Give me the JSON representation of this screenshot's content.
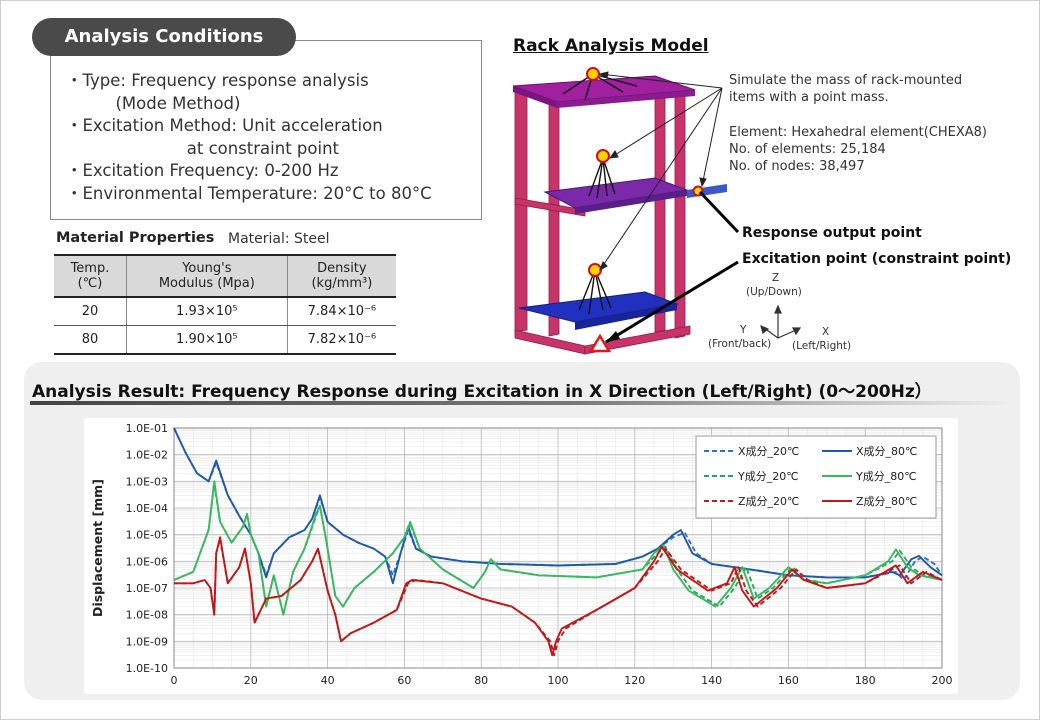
{
  "conditions": {
    "title": "Analysis Conditions",
    "items": [
      "・Type: Frequency response analysis",
      "　　　(Mode Method)",
      "・Excitation Method: Unit acceleration",
      "　　　　　　　 at constraint point",
      "・Excitation Frequency: 0-200 Hz",
      "・Environmental Temperature: 20°C to 80°C"
    ]
  },
  "material": {
    "title": "Material Properties",
    "subtitle": "Material: Steel",
    "headers": [
      [
        "Temp.",
        "(℃)"
      ],
      [
        "Young's",
        "Modulus (Mpa)"
      ],
      [
        "Density",
        "(kg/mm³)"
      ]
    ],
    "rows": [
      [
        "20",
        "1.93×10⁵",
        "7.84×10⁻⁶"
      ],
      [
        "80",
        "1.90×10⁵",
        "7.82×10⁻⁶"
      ]
    ]
  },
  "model": {
    "title": "Rack Analysis Model",
    "mass_note": "Simulate the mass of rack-mounted\nitems with a point mass.",
    "element_note": "Element: Hexahedral element(CHEXA8)\nNo. of elements: 25,184\nNo. of nodes: 38,497",
    "response_label": "Response output point",
    "excitation_label": "Excitation point (constraint point)",
    "axes": {
      "z": "Z",
      "z_desc": "(Up/Down)",
      "y": "Y",
      "y_desc": "(Front/back)",
      "x": "X",
      "x_desc": "(Left/Right)"
    },
    "colors": {
      "frame": "#c8336a",
      "top_shelf": "#a020a0",
      "mid_shelf": "#7a2aa8",
      "bottom_shelf": "#2230c0",
      "marker": "#ffd200"
    }
  },
  "result": {
    "title": "Analysis Result: Frequency Response during Excitation in X Direction (Left/Right) (0～200Hz）"
  },
  "chart_data": {
    "type": "line",
    "xlabel": "",
    "ylabel": "Displacement [mm]",
    "xlim": [
      0,
      200
    ],
    "ylim": [
      1e-10,
      0.1
    ],
    "yscale": "log",
    "grid": true,
    "legend_position": "top-right",
    "x_ticks": [
      "0",
      "20",
      "40",
      "60",
      "80",
      "100",
      "120",
      "140",
      "160",
      "180",
      "200"
    ],
    "y_ticks": [
      "1.0E-10",
      "1.0E-09",
      "1.0E-08",
      "1.0E-07",
      "1.0E-06",
      "1.0E-05",
      "1.0E-04",
      "1.0E-03",
      "1.0E-02",
      "1.0E-01"
    ],
    "series": [
      {
        "name": "X成分_20℃",
        "color": "#2e6fc7",
        "dash": true,
        "x": [
          0,
          3,
          6,
          9,
          11,
          14,
          17,
          20,
          22,
          24,
          26,
          30,
          34,
          36,
          38,
          40,
          44,
          48,
          52,
          55,
          57,
          59,
          61,
          63,
          67,
          75,
          85,
          100,
          115,
          122,
          126,
          130,
          133,
          136,
          140,
          150,
          160,
          170,
          180,
          188,
          190,
          193,
          195,
          198,
          200
        ],
        "y": [
          0.1,
          0.012,
          0.002,
          0.001,
          0.005,
          0.0003,
          5e-05,
          1e-05,
          2e-06,
          3e-07,
          2e-06,
          8e-06,
          1.5e-05,
          4e-05,
          0.00025,
          3e-05,
          1e-05,
          5e-06,
          3e-06,
          1.5e-06,
          3e-07,
          2e-06,
          1.5e-05,
          3e-06,
          1.5e-06,
          1e-06,
          8e-07,
          7e-07,
          8e-07,
          1.5e-06,
          3e-06,
          8e-06,
          1.2e-05,
          2e-06,
          8e-07,
          5e-07,
          3e-07,
          2.5e-07,
          2.5e-07,
          4e-07,
          2e-07,
          1e-06,
          1.5e-06,
          8e-07,
          3e-07
        ]
      },
      {
        "name": "X成分_80℃",
        "color": "#1f5aa8",
        "dash": false,
        "x": [
          0,
          3,
          6,
          9,
          11,
          14,
          17,
          20,
          22,
          24,
          26,
          30,
          34,
          36,
          38,
          40,
          44,
          48,
          52,
          55,
          57,
          59,
          61,
          63,
          67,
          75,
          85,
          100,
          115,
          122,
          126,
          130,
          132,
          135,
          140,
          150,
          160,
          170,
          180,
          187,
          189,
          192,
          194,
          197,
          200
        ],
        "y": [
          0.1,
          0.012,
          0.002,
          0.001,
          0.006,
          0.0003,
          5e-05,
          1e-05,
          2e-06,
          2.5e-07,
          2e-06,
          8e-06,
          1.5e-05,
          4e-05,
          0.0003,
          3e-05,
          1e-05,
          5e-06,
          3e-06,
          1.5e-06,
          1.5e-07,
          2e-06,
          2e-05,
          3e-06,
          1.5e-06,
          1e-06,
          8e-07,
          7e-07,
          8e-07,
          1.5e-06,
          3e-06,
          1e-05,
          1.5e-05,
          2e-06,
          8e-07,
          5e-07,
          3e-07,
          2.5e-07,
          2.5e-07,
          4e-07,
          3e-07,
          1.2e-06,
          1.6e-06,
          6e-07,
          3e-07
        ]
      },
      {
        "name": "Y成分_20℃",
        "color": "#2aa858",
        "dash": true,
        "x": [
          0,
          5,
          9,
          10.5,
          12,
          15,
          18,
          19,
          20,
          22,
          24,
          26,
          28.5,
          31,
          34,
          37,
          38,
          39.5,
          42,
          44,
          47,
          52,
          57,
          60,
          61.5,
          64,
          70,
          78,
          81,
          82.5,
          85,
          95,
          110,
          122,
          126,
          128,
          131,
          135,
          140,
          142,
          146,
          149,
          152,
          156,
          161,
          165,
          170,
          180,
          187,
          189,
          192,
          195,
          200
        ],
        "y": [
          2e-07,
          4e-07,
          1.5e-05,
          0.0008,
          3e-05,
          5e-06,
          2e-05,
          6e-05,
          1e-05,
          2e-06,
          2e-08,
          3e-07,
          1e-08,
          4e-07,
          3e-06,
          5e-05,
          0.00012,
          8e-06,
          5e-08,
          2e-08,
          1e-07,
          4e-07,
          2e-06,
          8e-06,
          2.5e-05,
          3e-06,
          5e-07,
          1e-07,
          4e-07,
          1.2e-06,
          5e-07,
          3e-07,
          2.5e-07,
          5e-07,
          2e-06,
          3.5e-06,
          5e-07,
          8e-08,
          3e-08,
          2e-08,
          1e-07,
          6e-07,
          4e-08,
          1e-07,
          6e-07,
          2e-07,
          1.5e-07,
          3e-07,
          1e-06,
          2.5e-06,
          6e-07,
          3e-07,
          2e-07
        ]
      },
      {
        "name": "Y成分_80℃",
        "color": "#38b860",
        "dash": false,
        "x": [
          0,
          5,
          9,
          10.5,
          12,
          15,
          18,
          19,
          20,
          22,
          24,
          26,
          28.5,
          31,
          34,
          37,
          38,
          39.5,
          42,
          44,
          47,
          52,
          57,
          60,
          61.5,
          64,
          70,
          78,
          81,
          82.5,
          85,
          95,
          110,
          122,
          125,
          127.5,
          130,
          134,
          139,
          141,
          145,
          148,
          151,
          155,
          160,
          164,
          170,
          180,
          186,
          188,
          191,
          194,
          200
        ],
        "y": [
          2e-07,
          4e-07,
          1.5e-05,
          0.001,
          3e-05,
          5e-06,
          2e-05,
          6e-05,
          1e-05,
          2e-06,
          2e-08,
          3e-07,
          1e-08,
          4e-07,
          3e-06,
          6e-05,
          0.00012,
          8e-06,
          5e-08,
          2e-08,
          1e-07,
          4e-07,
          2e-06,
          8e-06,
          3e-05,
          3e-06,
          5e-07,
          1e-07,
          4e-07,
          1.2e-06,
          5e-07,
          3e-07,
          2.5e-07,
          5e-07,
          2e-06,
          4e-06,
          5e-07,
          8e-08,
          3e-08,
          2e-08,
          1e-07,
          6e-07,
          4e-08,
          1e-07,
          6e-07,
          2e-07,
          1.5e-07,
          3e-07,
          1e-06,
          2.8e-06,
          6e-07,
          3e-07,
          2e-07
        ]
      },
      {
        "name": "Z成分_20℃",
        "color": "#b22020",
        "dash": true,
        "x": [
          0,
          5,
          8,
          9.5,
          10.5,
          11,
          12,
          14,
          17,
          18.5,
          20,
          21,
          24,
          28,
          33,
          36,
          37.5,
          40,
          42,
          43.5,
          46,
          52,
          58,
          61,
          63,
          70,
          80,
          88,
          94,
          98,
          99,
          100,
          102,
          110,
          120,
          126,
          128,
          132,
          140,
          145,
          147,
          149,
          152,
          158,
          162,
          165,
          170,
          180,
          189,
          192,
          196,
          200
        ],
        "y": [
          1.5e-07,
          1.5e-07,
          2e-07,
          1e-07,
          1e-08,
          2e-06,
          7e-06,
          1.5e-07,
          6e-07,
          3e-06,
          1.5e-07,
          5e-09,
          4e-08,
          5e-08,
          2e-07,
          1e-06,
          3e-06,
          8e-08,
          1e-08,
          1e-09,
          2e-09,
          5e-09,
          1.5e-08,
          1.5e-07,
          2e-07,
          1.5e-07,
          4e-08,
          2e-08,
          5e-09,
          1e-09,
          3e-10,
          1e-09,
          3e-09,
          1.5e-08,
          1e-07,
          1e-06,
          3e-06,
          5e-07,
          8e-08,
          1.5e-07,
          6e-07,
          8e-08,
          2e-08,
          1e-07,
          5e-07,
          2e-07,
          1e-07,
          1.5e-07,
          7e-07,
          1.5e-07,
          4e-07,
          2e-07
        ]
      },
      {
        "name": "Z成分_80℃",
        "color": "#c01818",
        "dash": false,
        "x": [
          0,
          5,
          8,
          9.5,
          10.5,
          11,
          12,
          14,
          17,
          18.5,
          20,
          21,
          24,
          28,
          33,
          36,
          37.5,
          40,
          42,
          43.5,
          46,
          52,
          58,
          60.5,
          62,
          70,
          80,
          88,
          94,
          97.5,
          98.5,
          99.5,
          101,
          110,
          120,
          125,
          127,
          131,
          139,
          144,
          146,
          148,
          151,
          157,
          161,
          164,
          170,
          180,
          188,
          191,
          195,
          200
        ],
        "y": [
          1.5e-07,
          1.5e-07,
          2e-07,
          1e-07,
          1e-08,
          2e-06,
          8e-06,
          1.5e-07,
          6e-07,
          3e-06,
          1.5e-07,
          5e-09,
          4e-08,
          5e-08,
          2e-07,
          1e-06,
          3e-06,
          8e-08,
          1e-08,
          1e-09,
          2e-09,
          5e-09,
          1.5e-08,
          1.5e-07,
          2e-07,
          1.5e-07,
          4e-08,
          2e-08,
          5e-09,
          1e-09,
          3e-10,
          1e-09,
          3e-09,
          1.5e-08,
          1e-07,
          1e-06,
          3.5e-06,
          5e-07,
          8e-08,
          1.5e-07,
          6e-07,
          8e-08,
          2e-08,
          1e-07,
          5e-07,
          2e-07,
          1e-07,
          1.5e-07,
          7e-07,
          1.5e-07,
          4e-07,
          2e-07
        ]
      }
    ]
  }
}
